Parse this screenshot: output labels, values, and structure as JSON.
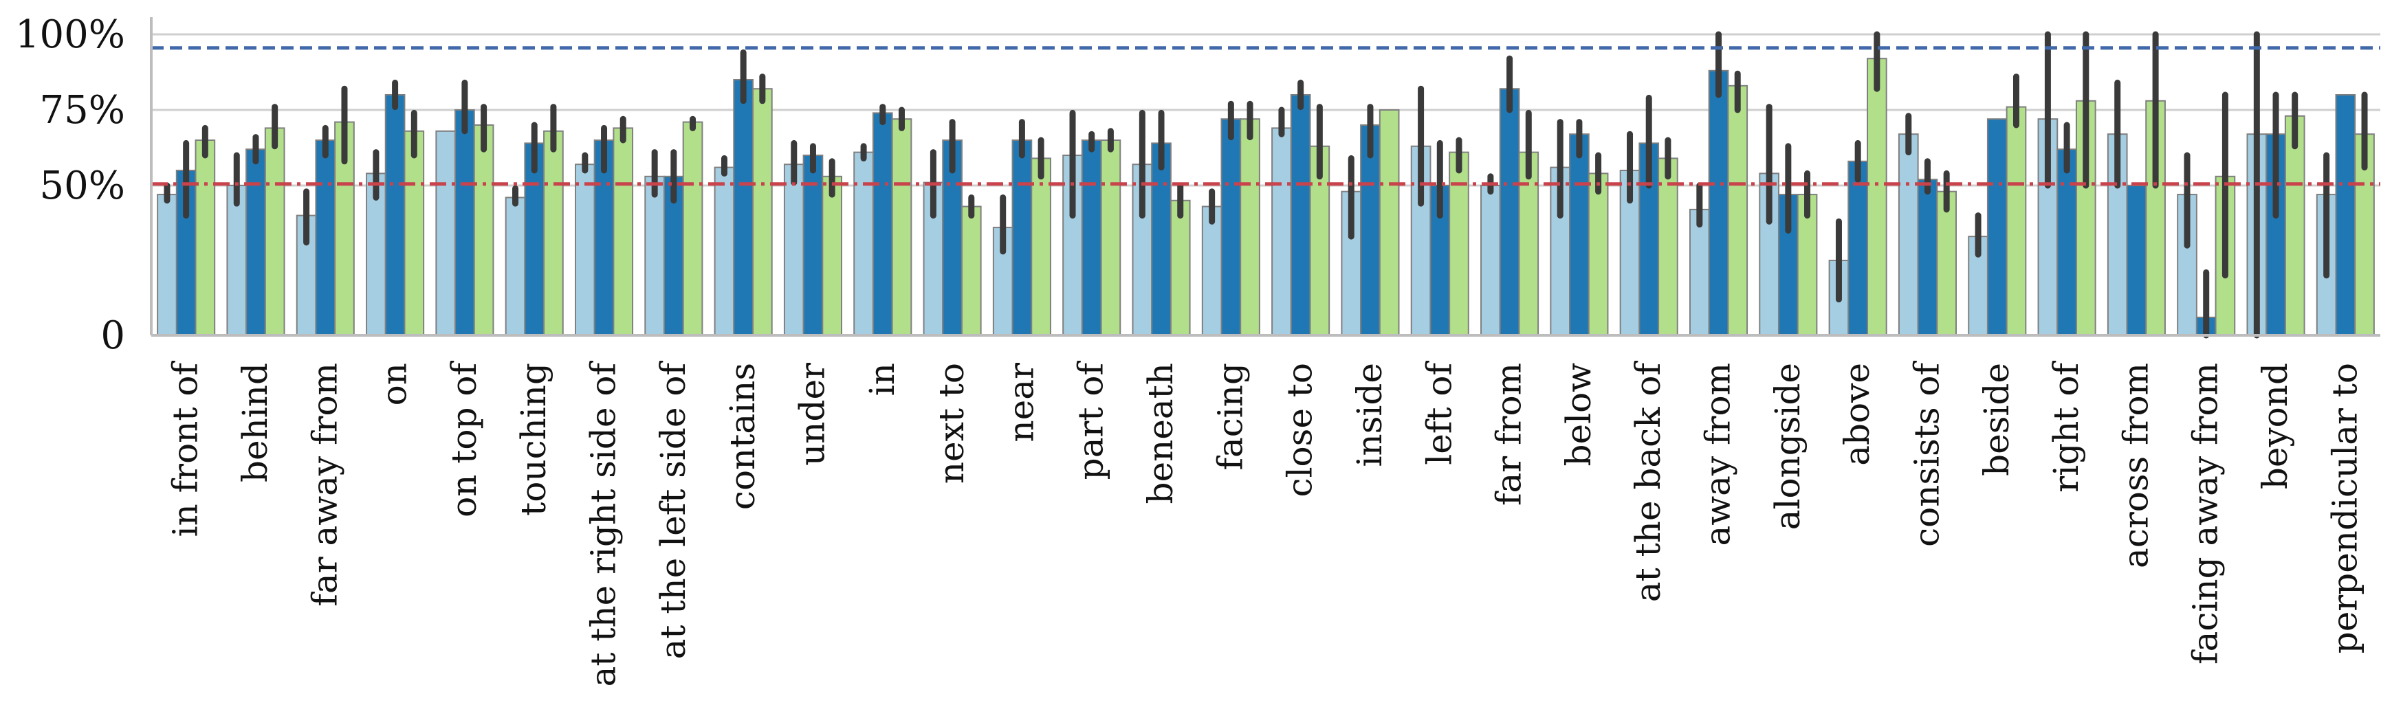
{
  "chart_data": {
    "type": "bar",
    "title": "",
    "xlabel": "",
    "ylabel": "",
    "ylim": [
      0,
      1.0
    ],
    "yticks": [
      {
        "value": 0,
        "label": "0"
      },
      {
        "value": 0.5,
        "label": "50%"
      },
      {
        "value": 0.75,
        "label": "75%"
      },
      {
        "value": 1.0,
        "label": "100%"
      }
    ],
    "grid": true,
    "legend": "none",
    "categories": [
      "in front of",
      "behind",
      "far away from",
      "on",
      "on top of",
      "touching",
      "at the right side of",
      "at the left side of",
      "contains",
      "under",
      "in",
      "next to",
      "near",
      "part of",
      "beneath",
      "facing",
      "close to",
      "inside",
      "left of",
      "far from",
      "below",
      "at the back of",
      "away from",
      "alongside",
      "above",
      "consists of",
      "beside",
      "right of",
      "across from",
      "facing away from",
      "beyond",
      "perpendicular to"
    ],
    "series": [
      {
        "color": "#a6cee3",
        "values": [
          0.47,
          0.5,
          0.4,
          0.54,
          0.68,
          0.46,
          0.57,
          0.53,
          0.56,
          0.57,
          0.61,
          0.51,
          0.36,
          0.6,
          0.57,
          0.43,
          0.69,
          0.48,
          0.63,
          0.5,
          0.56,
          0.55,
          0.42,
          0.54,
          0.25,
          0.67,
          0.33,
          0.72,
          0.67,
          0.47,
          0.67,
          0.47
        ],
        "err_low": [
          0.45,
          0.44,
          0.31,
          0.46,
          0.68,
          0.44,
          0.55,
          0.47,
          0.54,
          0.51,
          0.59,
          0.4,
          0.28,
          0.4,
          0.4,
          0.38,
          0.67,
          0.33,
          0.44,
          0.48,
          0.4,
          0.45,
          0.37,
          0.38,
          0.12,
          0.61,
          0.27,
          0.5,
          0.5,
          0.3,
          0.0,
          0.2
        ],
        "err_high": [
          0.5,
          0.6,
          0.48,
          0.61,
          0.68,
          0.49,
          0.6,
          0.61,
          0.59,
          0.64,
          0.63,
          0.61,
          0.46,
          0.74,
          0.74,
          0.48,
          0.75,
          0.59,
          0.82,
          0.53,
          0.71,
          0.67,
          0.5,
          0.76,
          0.38,
          0.73,
          0.4,
          1.0,
          0.84,
          0.6,
          1.0,
          0.6
        ]
      },
      {
        "color": "#1f78b4",
        "values": [
          0.55,
          0.62,
          0.65,
          0.8,
          0.75,
          0.64,
          0.65,
          0.53,
          0.85,
          0.6,
          0.74,
          0.65,
          0.65,
          0.65,
          0.64,
          0.72,
          0.8,
          0.7,
          0.5,
          0.82,
          0.67,
          0.64,
          0.88,
          0.47,
          0.58,
          0.52,
          0.72,
          0.62,
          0.5,
          0.06,
          0.67,
          0.8
        ],
        "err_low": [
          0.4,
          0.58,
          0.6,
          0.76,
          0.68,
          0.55,
          0.55,
          0.45,
          0.78,
          0.55,
          0.71,
          0.55,
          0.6,
          0.62,
          0.56,
          0.66,
          0.76,
          0.6,
          0.4,
          0.75,
          0.6,
          0.5,
          0.8,
          0.35,
          0.52,
          0.48,
          0.72,
          0.55,
          0.5,
          0.0,
          0.4,
          0.8
        ],
        "err_high": [
          0.64,
          0.66,
          0.69,
          0.84,
          0.84,
          0.7,
          0.69,
          0.61,
          0.94,
          0.63,
          0.76,
          0.71,
          0.71,
          0.67,
          0.74,
          0.77,
          0.84,
          0.76,
          0.64,
          0.92,
          0.71,
          0.79,
          1.0,
          0.63,
          0.64,
          0.58,
          0.72,
          0.7,
          0.5,
          0.21,
          0.8,
          0.8
        ]
      },
      {
        "color": "#b2df8a",
        "values": [
          0.65,
          0.69,
          0.71,
          0.68,
          0.7,
          0.68,
          0.69,
          0.71,
          0.82,
          0.53,
          0.72,
          0.43,
          0.59,
          0.65,
          0.45,
          0.72,
          0.63,
          0.75,
          0.61,
          0.61,
          0.54,
          0.59,
          0.83,
          0.47,
          0.92,
          0.48,
          0.76,
          0.78,
          0.78,
          0.53,
          0.73,
          0.67
        ],
        "err_low": [
          0.6,
          0.63,
          0.58,
          0.6,
          0.62,
          0.62,
          0.65,
          0.69,
          0.78,
          0.47,
          0.69,
          0.4,
          0.53,
          0.62,
          0.4,
          0.66,
          0.53,
          0.75,
          0.55,
          0.53,
          0.48,
          0.53,
          0.75,
          0.4,
          0.82,
          0.42,
          0.7,
          0.5,
          0.5,
          0.2,
          0.63,
          0.56
        ],
        "err_high": [
          0.69,
          0.76,
          0.82,
          0.74,
          0.76,
          0.76,
          0.72,
          0.72,
          0.86,
          0.58,
          0.75,
          0.46,
          0.65,
          0.68,
          0.5,
          0.77,
          0.76,
          0.75,
          0.65,
          0.74,
          0.6,
          0.65,
          0.87,
          0.54,
          1.0,
          0.54,
          0.86,
          1.0,
          1.0,
          0.8,
          0.8,
          0.8
        ]
      }
    ],
    "reference_lines": [
      {
        "value": 0.955,
        "color": "#4169aa",
        "style": "dashed"
      },
      {
        "value": 0.505,
        "color": "#c8434b",
        "style": "dashdot"
      }
    ]
  }
}
